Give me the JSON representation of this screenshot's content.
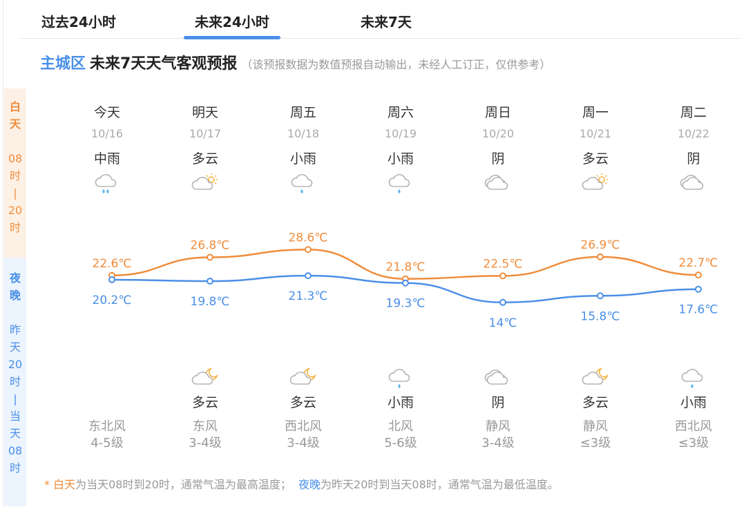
{
  "tabs": [
    {
      "label": "过去24小时",
      "active": false
    },
    {
      "label": "未来24小时",
      "active": true
    },
    {
      "label": "未来7天",
      "active": false
    }
  ],
  "header": {
    "area": "主城区",
    "title": "未来7天天气客观预报",
    "note": "（该预报数据为数值预报自动输出，未经人工订正，仅供参考）"
  },
  "side": {
    "day": {
      "label": [
        "白",
        "天"
      ],
      "range": [
        "08",
        "时",
        "|",
        "20",
        "时"
      ]
    },
    "night": {
      "label": [
        "夜",
        "晚"
      ],
      "range": [
        "昨",
        "天",
        "20",
        "时",
        "|",
        "当",
        "天",
        "08",
        "时"
      ]
    }
  },
  "days": [
    {
      "name": "今天",
      "date": "10/16",
      "day_weather": "中雨",
      "day_icon": "cloud-moderate-rain-icon",
      "night_weather": "",
      "night_icon": "",
      "wind_dir": "东北风",
      "wind_level": "4-5级"
    },
    {
      "name": "明天",
      "date": "10/17",
      "day_weather": "多云",
      "day_icon": "cloud-sun-icon",
      "night_weather": "多云",
      "night_icon": "cloud-moon-icon",
      "wind_dir": "东风",
      "wind_level": "3-4级"
    },
    {
      "name": "周五",
      "date": "10/18",
      "day_weather": "小雨",
      "day_icon": "cloud-light-rain-icon",
      "night_weather": "多云",
      "night_icon": "cloud-moon-icon",
      "wind_dir": "西北风",
      "wind_level": "3-4级"
    },
    {
      "name": "周六",
      "date": "10/19",
      "day_weather": "小雨",
      "day_icon": "cloud-light-rain-icon",
      "night_weather": "小雨",
      "night_icon": "cloud-light-rain-icon",
      "wind_dir": "北风",
      "wind_level": "5-6级"
    },
    {
      "name": "周日",
      "date": "10/20",
      "day_weather": "阴",
      "day_icon": "overcast-icon",
      "night_weather": "阴",
      "night_icon": "overcast-icon",
      "wind_dir": "静风",
      "wind_level": "3-4级"
    },
    {
      "name": "周一",
      "date": "10/21",
      "day_weather": "多云",
      "day_icon": "cloud-sun-icon",
      "night_weather": "多云",
      "night_icon": "cloud-moon-icon",
      "wind_dir": "静风",
      "wind_level": "≤3级"
    },
    {
      "name": "周二",
      "date": "10/22",
      "day_weather": "阴",
      "day_icon": "overcast-icon",
      "night_weather": "小雨",
      "night_icon": "cloud-light-rain-icon",
      "wind_dir": "西北风",
      "wind_level": "≤3级"
    }
  ],
  "chart_data": {
    "type": "line",
    "categories": [
      "10/16",
      "10/17",
      "10/18",
      "10/19",
      "10/20",
      "10/21",
      "10/22"
    ],
    "series": [
      {
        "name": "白天",
        "color": "#ef8c3b",
        "values": [
          22.6,
          26.8,
          28.6,
          21.8,
          22.5,
          26.9,
          22.7
        ],
        "labels": [
          "22.6℃",
          "26.8℃",
          "28.6℃",
          "21.8℃",
          "22.5℃",
          "26.9℃",
          "22.7℃"
        ]
      },
      {
        "name": "夜晚",
        "color": "#4a8fe7",
        "values": [
          20.2,
          19.8,
          21.3,
          19.3,
          14,
          15.8,
          17.6
        ],
        "labels": [
          "20.2℃",
          "19.8℃",
          "21.3℃",
          "19.3℃",
          "14℃",
          "15.8℃",
          "17.6℃"
        ]
      }
    ],
    "title": "",
    "xlabel": "",
    "ylabel": "℃",
    "grid": false,
    "legend": "none"
  },
  "footnote": {
    "star": "* ",
    "day_term": "白天",
    "day_text": "为当天08时到20时，通常气温为最高温度；",
    "night_term": "夜晚",
    "night_text": "为昨天20时到当天08时，通常气温为最低温度。"
  },
  "colors": {
    "accent_blue": "#4a8fe7",
    "accent_orange": "#ef8c3b",
    "day_bg": "#fdf1e5",
    "night_bg": "#ecf4fd"
  }
}
